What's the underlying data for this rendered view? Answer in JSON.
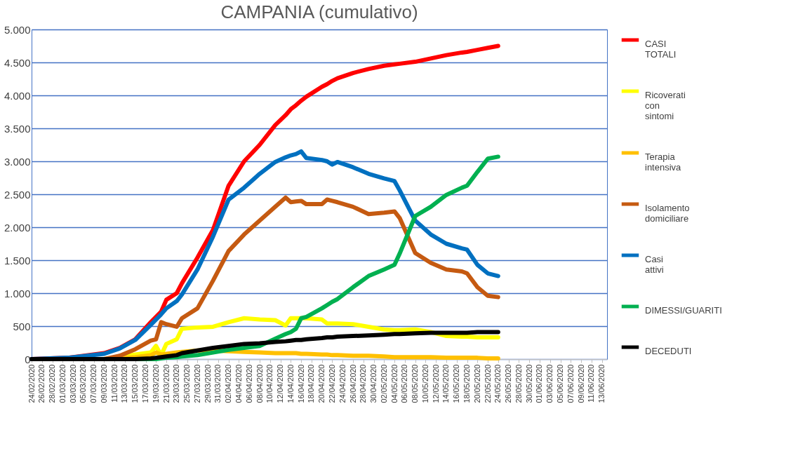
{
  "chart_data": {
    "type": "line",
    "title": "CAMPANIA (cumulativo)",
    "x": [
      "2020-02-24",
      "2020-03-02",
      "2020-03-09",
      "2020-03-12",
      "2020-03-15",
      "2020-03-18",
      "2020-03-19",
      "2020-03-20",
      "2020-03-21",
      "2020-03-23",
      "2020-03-24",
      "2020-03-27",
      "2020-03-30",
      "2020-04-02",
      "2020-04-05",
      "2020-04-08",
      "2020-04-11",
      "2020-04-13",
      "2020-04-14",
      "2020-04-15",
      "2020-04-16",
      "2020-04-17",
      "2020-04-20",
      "2020-04-21",
      "2020-04-22",
      "2020-04-23",
      "2020-04-26",
      "2020-04-29",
      "2020-05-02",
      "2020-05-04",
      "2020-05-05",
      "2020-05-08",
      "2020-05-11",
      "2020-05-14",
      "2020-05-17",
      "2020-05-18",
      "2020-05-20",
      "2020-05-22",
      "2020-05-24"
    ],
    "xlim": [
      "2020-02-24",
      "2020-06-14"
    ],
    "xticks": [
      {
        "value": "2020-02-24",
        "label": "24/02/2020"
      },
      {
        "value": "2020-02-26",
        "label": "26/02/2020"
      },
      {
        "value": "2020-02-28",
        "label": "28/02/2020"
      },
      {
        "value": "2020-03-01",
        "label": "01/03/2020"
      },
      {
        "value": "2020-03-03",
        "label": "03/03/2020"
      },
      {
        "value": "2020-03-05",
        "label": "05/03/2020"
      },
      {
        "value": "2020-03-07",
        "label": "07/03/2020"
      },
      {
        "value": "2020-03-09",
        "label": "09/03/2020"
      },
      {
        "value": "2020-03-11",
        "label": "11/03/2020"
      },
      {
        "value": "2020-03-13",
        "label": "13/03/2020"
      },
      {
        "value": "2020-03-15",
        "label": "15/03/2020"
      },
      {
        "value": "2020-03-17",
        "label": "17/03/2020"
      },
      {
        "value": "2020-03-19",
        "label": "19/03/2020"
      },
      {
        "value": "2020-03-21",
        "label": "21/03/2020"
      },
      {
        "value": "2020-03-23",
        "label": "23/03/2020"
      },
      {
        "value": "2020-03-25",
        "label": "25/03/2020"
      },
      {
        "value": "2020-03-27",
        "label": "27/03/2020"
      },
      {
        "value": "2020-03-29",
        "label": "29/03/2020"
      },
      {
        "value": "2020-03-31",
        "label": "31/03/2020"
      },
      {
        "value": "2020-04-02",
        "label": "02/04/2020"
      },
      {
        "value": "2020-04-04",
        "label": "04/04/2020"
      },
      {
        "value": "2020-04-06",
        "label": "06/04/2020"
      },
      {
        "value": "2020-04-08",
        "label": "08/04/2020"
      },
      {
        "value": "2020-04-10",
        "label": "10/04/2020"
      },
      {
        "value": "2020-04-12",
        "label": "12/04/2020"
      },
      {
        "value": "2020-04-14",
        "label": "14/04/2020"
      },
      {
        "value": "2020-04-16",
        "label": "16/04/2020"
      },
      {
        "value": "2020-04-18",
        "label": "18/04/2020"
      },
      {
        "value": "2020-04-20",
        "label": "20/04/2020"
      },
      {
        "value": "2020-04-22",
        "label": "22/04/2020"
      },
      {
        "value": "2020-04-24",
        "label": "24/04/2020"
      },
      {
        "value": "2020-04-26",
        "label": "26/04/2020"
      },
      {
        "value": "2020-04-28",
        "label": "28/04/2020"
      },
      {
        "value": "2020-04-30",
        "label": "30/04/2020"
      },
      {
        "value": "2020-05-02",
        "label": "02/05/2020"
      },
      {
        "value": "2020-05-04",
        "label": "04/05/2020"
      },
      {
        "value": "2020-05-06",
        "label": "06/05/2020"
      },
      {
        "value": "2020-05-08",
        "label": "08/05/2020"
      },
      {
        "value": "2020-05-10",
        "label": "10/05/2020"
      },
      {
        "value": "2020-05-12",
        "label": "12/05/2020"
      },
      {
        "value": "2020-05-14",
        "label": "14/05/2020"
      },
      {
        "value": "2020-05-16",
        "label": "16/05/2020"
      },
      {
        "value": "2020-05-18",
        "label": "18/05/2020"
      },
      {
        "value": "2020-05-20",
        "label": "20/05/2020"
      },
      {
        "value": "2020-05-22",
        "label": "22/05/2020"
      },
      {
        "value": "2020-05-24",
        "label": "24/05/2020"
      },
      {
        "value": "2020-05-26",
        "label": "26/05/2020"
      },
      {
        "value": "2020-05-28",
        "label": "28/05/2020"
      },
      {
        "value": "2020-05-30",
        "label": "30/05/2020"
      },
      {
        "value": "2020-06-01",
        "label": "01/06/2020"
      },
      {
        "value": "2020-06-03",
        "label": "03/06/2020"
      },
      {
        "value": "2020-06-05",
        "label": "05/06/2020"
      },
      {
        "value": "2020-06-07",
        "label": "07/06/2020"
      },
      {
        "value": "2020-06-09",
        "label": "09/06/2020"
      },
      {
        "value": "2020-06-11",
        "label": "11/06/2020"
      },
      {
        "value": "2020-06-13",
        "label": "13/06/2020"
      }
    ],
    "ylim": [
      0,
      5000
    ],
    "yticks": [
      0,
      500,
      {
        "value": 1000,
        "label": "1.000"
      },
      {
        "value": 1500,
        "label": "1.500"
      },
      {
        "value": 2000,
        "label": "2.000"
      },
      {
        "value": 2500,
        "label": "2.500"
      },
      {
        "value": 3000,
        "label": "3.000"
      },
      {
        "value": 3500,
        "label": "3.500"
      },
      {
        "value": 4000,
        "label": "4.000"
      },
      {
        "value": 4500,
        "label": "4.500"
      },
      {
        "value": 5000,
        "label": "5.000"
      }
    ],
    "grid": "y",
    "legend": "right",
    "series": [
      {
        "name": "CASI TOTALI",
        "color": "#ff0000",
        "values": [
          0,
          20,
          90,
          170,
          300,
          560,
          640,
          720,
          900,
          1000,
          1150,
          1540,
          1960,
          2630,
          3000,
          3250,
          3550,
          3700,
          3790,
          3850,
          3920,
          3980,
          4130,
          4170,
          4220,
          4260,
          4340,
          4400,
          4450,
          4470,
          4480,
          4510,
          4560,
          4610,
          4650,
          4660,
          4690,
          4720,
          4750
        ]
      },
      {
        "name": "Ricoverati con sintomi",
        "color": "#ffff00",
        "values": [
          null,
          null,
          0,
          30,
          70,
          100,
          200,
          60,
          230,
          300,
          460,
          480,
          490,
          560,
          620,
          600,
          590,
          510,
          620,
          620,
          620,
          620,
          600,
          540,
          540,
          540,
          530,
          490,
          450,
          440,
          440,
          450,
          410,
          350,
          340,
          340,
          330,
          330,
          330
        ]
      },
      {
        "name": "Terapia intensiva",
        "color": "#ffc000",
        "values": [
          null,
          null,
          0,
          10,
          30,
          60,
          100,
          70,
          80,
          100,
          110,
          130,
          130,
          120,
          110,
          100,
          90,
          90,
          90,
          90,
          80,
          80,
          70,
          70,
          60,
          60,
          50,
          50,
          40,
          30,
          30,
          30,
          30,
          20,
          20,
          20,
          20,
          10,
          10
        ]
      },
      {
        "name": "Isolamento domiciliare",
        "color": "#c55a11",
        "values": [
          0,
          0,
          0,
          50,
          150,
          280,
          300,
          560,
          530,
          490,
          620,
          770,
          1190,
          1640,
          1890,
          2100,
          2310,
          2450,
          2380,
          2390,
          2400,
          2350,
          2350,
          2420,
          2400,
          2380,
          2310,
          2200,
          2220,
          2240,
          2140,
          1610,
          1460,
          1360,
          1330,
          1300,
          1090,
          960,
          940
        ]
      },
      {
        "name": "Casi attivi",
        "color": "#0070c0",
        "values": [
          0,
          20,
          80,
          160,
          290,
          520,
          600,
          680,
          770,
          880,
          980,
          1360,
          1860,
          2420,
          2600,
          2810,
          2990,
          3060,
          3090,
          3110,
          3150,
          3050,
          3020,
          3000,
          2950,
          2990,
          2910,
          2810,
          2740,
          2700,
          2560,
          2100,
          1890,
          1750,
          1680,
          1660,
          1430,
          1300,
          1260
        ]
      },
      {
        "name": "DIMESSI/GUARITI",
        "color": "#00b050",
        "values": [
          null,
          null,
          null,
          0,
          0,
          0,
          0,
          10,
          20,
          30,
          40,
          60,
          100,
          140,
          170,
          200,
          310,
          380,
          410,
          460,
          620,
          640,
          770,
          820,
          870,
          910,
          1090,
          1260,
          1360,
          1430,
          1600,
          2170,
          2310,
          2490,
          2600,
          2630,
          2840,
          3040,
          3070
        ]
      },
      {
        "name": "DECEDUTI",
        "color": "#000000",
        "values": [
          0,
          0,
          0,
          0,
          0,
          10,
          20,
          30,
          40,
          60,
          90,
          130,
          170,
          200,
          230,
          240,
          260,
          270,
          280,
          290,
          290,
          300,
          320,
          330,
          330,
          340,
          350,
          360,
          370,
          380,
          380,
          390,
          400,
          400,
          400,
          400,
          410,
          410,
          410
        ]
      }
    ]
  }
}
